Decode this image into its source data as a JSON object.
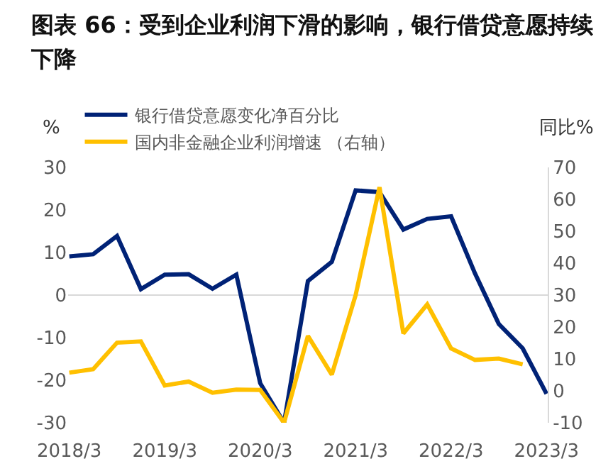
{
  "chart_data": {
    "type": "line",
    "title": "图表 66：受到企业利润下滑的影响，银行借贷意愿持续下降",
    "ylabel": "%",
    "y2label": "同比%",
    "categories": [
      "2018/3",
      null,
      null,
      null,
      "2019/3",
      null,
      null,
      null,
      "2020/3",
      null,
      null,
      null,
      "2021/3",
      null,
      null,
      null,
      "2022/3",
      null,
      null,
      null,
      "2023/3"
    ],
    "series": [
      {
        "name": "银行借贷意愿变化净百分比",
        "color": "#002276",
        "values": [
          9.1,
          9.6,
          13.9,
          1.4,
          4.8,
          4.9,
          1.5,
          4.8,
          -20.7,
          -30,
          3.3,
          7.8,
          24.6,
          24.2,
          15.4,
          17.9,
          18.5,
          5.1,
          -6.8,
          -12.5,
          -23.2
        ]
      },
      {
        "name": "国内非金融企业利润增速 （右轴）",
        "color": "#ffc000",
        "axis": "y2",
        "values": [
          5.7,
          6.8,
          15.1,
          15.5,
          1.7,
          2.9,
          -0.6,
          0.4,
          0.3,
          -10,
          17.2,
          5.1,
          30,
          63.8,
          18,
          27.1,
          13.3,
          9.7,
          10.1,
          8.3,
          null
        ]
      }
    ],
    "ylim": [
      -30,
      30
    ],
    "yticks": [
      -30,
      -20,
      -10,
      0,
      10,
      20,
      30
    ],
    "y2lim": [
      -10,
      70
    ],
    "y2ticks": [
      -10,
      0,
      10,
      20,
      30,
      40,
      50,
      60,
      70
    ],
    "ref_lines": [
      {
        "axis": "y",
        "value": 0,
        "color": "#d9d9d9"
      }
    ],
    "grid": false,
    "legend": "top",
    "line_style": "solid",
    "marker": "none"
  }
}
